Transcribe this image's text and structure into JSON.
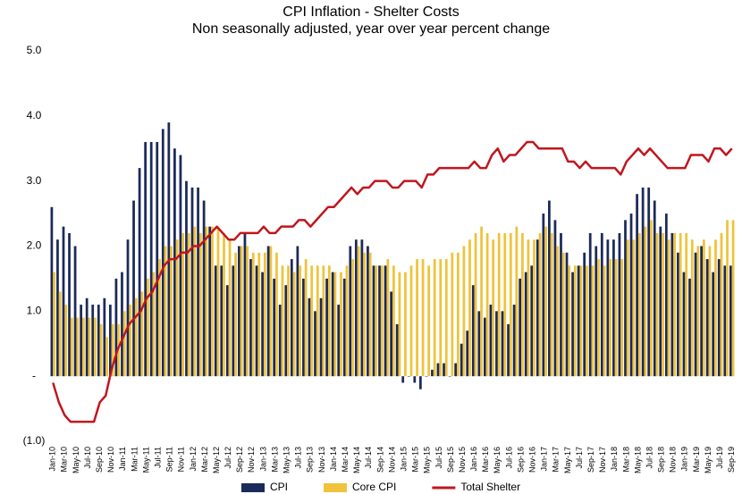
{
  "chart_data": {
    "type": "bar-line",
    "title": "CPI Inflation - Shelter Costs",
    "subtitle": "Non seasonally adjusted, year over year percent change",
    "categories": [
      "Jan-10",
      null,
      "Mar-10",
      null,
      "May-10",
      null,
      "Jul-10",
      null,
      "Sep-10",
      null,
      "Nov-10",
      null,
      "Jan-11",
      null,
      "Mar-11",
      null,
      "May-11",
      null,
      "Jul-11",
      null,
      "Sep-11",
      null,
      "Nov-11",
      null,
      "Jan-12",
      null,
      "Mar-12",
      null,
      "May-12",
      null,
      "Jul-12",
      null,
      "Sep-12",
      null,
      "Nov-12",
      null,
      "Jan-13",
      null,
      "Mar-13",
      null,
      "May-13",
      null,
      "Jul-13",
      null,
      "Sep-13",
      null,
      "Nov-13",
      null,
      "Jan-14",
      null,
      "Mar-14",
      null,
      "May-14",
      null,
      "Jul-14",
      null,
      "Sep-14",
      null,
      "Nov-14",
      null,
      "Jan-15",
      null,
      "Mar-15",
      null,
      "May-15",
      null,
      "Jul-15",
      null,
      "Sep-15",
      null,
      "Nov-15",
      null,
      "Jan-16",
      null,
      "Mar-16",
      null,
      "May-16",
      null,
      "Jul-16",
      null,
      "Sep-16",
      null,
      "Nov-16",
      null,
      "Jan-17",
      null,
      "Mar-17",
      null,
      "May-17",
      null,
      "Jul-17",
      null,
      "Sep-17",
      null,
      "Nov-17",
      null,
      "Jan-18",
      null,
      "Mar-18",
      null,
      "May-18",
      null,
      "Jul-18",
      null,
      "Sep-18",
      null,
      "Nov-18",
      null,
      "Jan-19",
      null,
      "Mar-19",
      null,
      "May-19",
      null,
      "Jul-19",
      null,
      "Sep-19"
    ],
    "series": [
      {
        "name": "CPI",
        "color": "#1c2a5a",
        "kind": "bar",
        "values": [
          2.6,
          2.1,
          2.3,
          2.2,
          2.0,
          1.1,
          1.2,
          1.1,
          1.1,
          1.2,
          1.1,
          1.5,
          1.6,
          2.1,
          2.7,
          3.2,
          3.6,
          3.6,
          3.6,
          3.8,
          3.9,
          3.5,
          3.4,
          3.0,
          2.9,
          2.9,
          2.7,
          2.3,
          1.7,
          1.7,
          1.4,
          1.7,
          2.0,
          2.2,
          1.8,
          1.7,
          1.6,
          2.0,
          1.5,
          1.1,
          1.4,
          1.8,
          2.0,
          1.5,
          1.2,
          1.0,
          1.2,
          1.5,
          1.6,
          1.1,
          1.5,
          2.0,
          2.1,
          2.1,
          2.0,
          1.7,
          1.7,
          1.7,
          1.3,
          0.8,
          -0.1,
          0.0,
          -0.1,
          -0.2,
          0.0,
          0.1,
          0.2,
          0.2,
          0.0,
          0.2,
          0.5,
          0.7,
          1.4,
          1.0,
          0.9,
          1.1,
          1.0,
          1.0,
          0.8,
          1.1,
          1.5,
          1.6,
          1.7,
          2.1,
          2.5,
          2.7,
          2.4,
          2.2,
          1.9,
          1.6,
          1.7,
          1.9,
          2.2,
          2.0,
          2.2,
          2.1,
          2.1,
          2.2,
          2.4,
          2.5,
          2.8,
          2.9,
          2.9,
          2.7,
          2.3,
          2.5,
          2.2,
          1.9,
          1.6,
          1.5,
          1.9,
          2.0,
          1.8,
          1.6,
          1.8,
          1.7,
          1.7
        ]
      },
      {
        "name": "Core CPI",
        "color": "#efc33b",
        "kind": "bar",
        "values": [
          1.6,
          1.3,
          1.1,
          0.9,
          0.9,
          0.9,
          0.9,
          0.9,
          0.8,
          0.6,
          0.8,
          0.8,
          1.0,
          1.1,
          1.2,
          1.3,
          1.5,
          1.6,
          1.8,
          2.0,
          2.0,
          2.1,
          2.2,
          2.2,
          2.3,
          2.2,
          2.3,
          2.3,
          2.3,
          2.2,
          2.1,
          1.9,
          2.0,
          2.0,
          1.9,
          1.9,
          1.9,
          2.0,
          1.9,
          1.7,
          1.7,
          1.6,
          1.7,
          1.8,
          1.7,
          1.7,
          1.7,
          1.7,
          1.6,
          1.6,
          1.7,
          1.8,
          2.0,
          1.9,
          1.9,
          1.7,
          1.7,
          1.8,
          1.7,
          1.6,
          1.6,
          1.7,
          1.8,
          1.8,
          1.7,
          1.8,
          1.8,
          1.8,
          1.9,
          1.9,
          2.0,
          2.1,
          2.2,
          2.3,
          2.2,
          2.1,
          2.2,
          2.2,
          2.2,
          2.3,
          2.2,
          2.1,
          2.1,
          2.2,
          2.3,
          2.2,
          2.0,
          1.9,
          1.7,
          1.7,
          1.7,
          1.7,
          1.7,
          1.8,
          1.7,
          1.8,
          1.8,
          1.8,
          2.1,
          2.1,
          2.2,
          2.3,
          2.4,
          2.2,
          2.2,
          2.1,
          2.2,
          2.2,
          2.2,
          2.1,
          2.0,
          2.1,
          2.0,
          2.1,
          2.2,
          2.4,
          2.4
        ]
      },
      {
        "name": "Total Shelter",
        "color": "#c0161e",
        "kind": "line",
        "values": [
          -0.1,
          -0.4,
          -0.6,
          -0.7,
          -0.7,
          -0.7,
          -0.7,
          -0.7,
          -0.4,
          -0.3,
          0.1,
          0.4,
          0.6,
          0.8,
          0.9,
          1.0,
          1.2,
          1.3,
          1.5,
          1.7,
          1.8,
          1.8,
          1.9,
          1.9,
          2.0,
          2.0,
          2.1,
          2.2,
          2.3,
          2.2,
          2.1,
          2.1,
          2.2,
          2.2,
          2.2,
          2.2,
          2.3,
          2.2,
          2.2,
          2.3,
          2.3,
          2.3,
          2.4,
          2.4,
          2.3,
          2.4,
          2.5,
          2.6,
          2.6,
          2.7,
          2.8,
          2.9,
          2.8,
          2.9,
          2.9,
          3.0,
          3.0,
          3.0,
          2.9,
          2.9,
          3.0,
          3.0,
          3.0,
          2.9,
          3.1,
          3.1,
          3.2,
          3.2,
          3.2,
          3.2,
          3.2,
          3.2,
          3.3,
          3.2,
          3.2,
          3.4,
          3.5,
          3.3,
          3.4,
          3.4,
          3.5,
          3.6,
          3.6,
          3.5,
          3.5,
          3.5,
          3.5,
          3.5,
          3.3,
          3.3,
          3.2,
          3.3,
          3.2,
          3.2,
          3.2,
          3.2,
          3.2,
          3.1,
          3.3,
          3.4,
          3.5,
          3.4,
          3.5,
          3.4,
          3.3,
          3.2,
          3.2,
          3.2,
          3.2,
          3.4,
          3.4,
          3.4,
          3.3,
          3.5,
          3.5,
          3.4,
          3.5
        ]
      }
    ],
    "ylim": [
      -1,
      5
    ],
    "yticks": [
      {
        "value": 5,
        "label": "5.0"
      },
      {
        "value": 4,
        "label": "4.0"
      },
      {
        "value": 3,
        "label": "3.0"
      },
      {
        "value": 2,
        "label": "2.0"
      },
      {
        "value": 1,
        "label": "1.0"
      },
      {
        "value": 0,
        "label": "-"
      },
      {
        "value": -1,
        "label": "(1.0)"
      }
    ],
    "legend": "bottom"
  }
}
